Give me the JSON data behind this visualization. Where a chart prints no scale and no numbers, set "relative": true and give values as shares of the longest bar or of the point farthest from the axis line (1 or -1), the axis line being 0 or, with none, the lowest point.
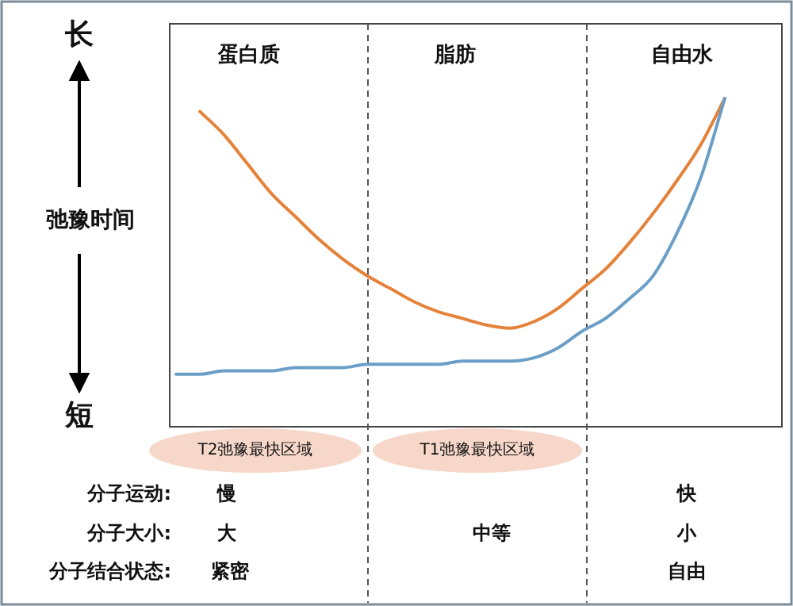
{
  "chart_data": {
    "type": "line",
    "relative": true,
    "ylabel": "弛豫时间",
    "categories": [
      null,
      null,
      null,
      null,
      null,
      null,
      null,
      null,
      null,
      null,
      null,
      null,
      null,
      null,
      null,
      null,
      null,
      null,
      null,
      null,
      null,
      null,
      null,
      null
    ],
    "series": [
      {
        "color": "#e5823a",
        "values": [
          null,
          0.96,
          0.89,
          0.8,
          0.71,
          0.64,
          0.57,
          0.51,
          0.46,
          0.42,
          0.38,
          0.35,
          0.33,
          0.31,
          0.3,
          0.32,
          0.36,
          0.42,
          0.48,
          0.56,
          0.65,
          0.75,
          0.86,
          1
        ]
      },
      {
        "color": "#6a9ec7",
        "values": [
          0.16,
          0.16,
          0.17,
          0.17,
          0.17,
          0.18,
          0.18,
          0.18,
          0.19,
          0.19,
          0.19,
          0.19,
          0.2,
          0.2,
          0.2,
          0.21,
          0.24,
          0.29,
          0.33,
          0.39,
          0.46,
          0.59,
          0.76,
          1.0
        ]
      }
    ],
    "annotations": [
      "长",
      "短",
      "蛋白质",
      "脂肪",
      "自由水",
      "T2弛豫最快区域",
      "T1弛豫最快区域",
      "分子运动:",
      "慢",
      "快",
      "分子大小:",
      "大",
      "中等",
      "小",
      "分子结合状态:",
      "紧密",
      "自由"
    ]
  }
}
